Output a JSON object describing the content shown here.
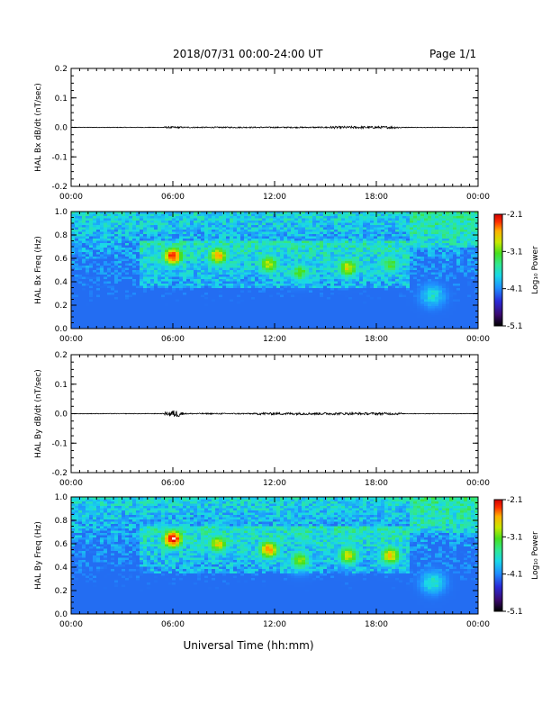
{
  "header": {
    "title": "2018/07/31  00:00-24:00 UT",
    "page": "Page 1/1"
  },
  "footer": {
    "xlabel": "Universal Time (hh:mm)"
  },
  "colors": {
    "waveform": "#000000",
    "colormap": [
      "#000000",
      "#3b0a6e",
      "#2a2ad8",
      "#1f8fff",
      "#19d8e8",
      "#30e890",
      "#46e01e",
      "#c8e800",
      "#ffb000",
      "#ff3000",
      "#d20000",
      "#ffffff"
    ]
  },
  "chart_data": [
    {
      "type": "line",
      "panel": "bx-waveform",
      "ylabel": "HAL Bx dB/dt (nT/sec)",
      "xlim": [
        "00:00",
        "24:00"
      ],
      "ylim": [
        -0.2,
        0.2
      ],
      "x_ticks": [
        "00:00",
        "06:00",
        "12:00",
        "18:00",
        "00:00"
      ],
      "y_ticks": [
        "0.2",
        "0.1",
        "0.0",
        "-0.1",
        "-0.2"
      ],
      "grid": false,
      "activity": [
        {
          "start": "00:00",
          "end": "05:00",
          "amplitude": 0.001
        },
        {
          "start": "05:30",
          "end": "06:30",
          "amplitude": 0.003
        },
        {
          "start": "06:30",
          "end": "15:00",
          "amplitude": 0.002
        },
        {
          "start": "15:00",
          "end": "19:30",
          "amplitude": 0.004
        },
        {
          "start": "19:30",
          "end": "24:00",
          "amplitude": 0.001
        }
      ]
    },
    {
      "type": "heatmap",
      "panel": "bx-spectrogram",
      "ylabel": "HAL Bx Freq (Hz)",
      "xlim": [
        "00:00",
        "24:00"
      ],
      "ylim": [
        0.0,
        1.0
      ],
      "x_ticks": [
        "00:00",
        "06:00",
        "12:00",
        "18:00",
        "00:00"
      ],
      "y_ticks": [
        "1.0",
        "0.8",
        "0.6",
        "0.4",
        "0.2",
        "0.0"
      ],
      "colorbar": {
        "label": "Log₁₀ Power",
        "range": [
          -5.1,
          -2.1
        ],
        "ticks": [
          "-2.1",
          "-3.1",
          "-4.1",
          "-5.1"
        ]
      },
      "features": [
        {
          "time": "06:00",
          "freq": 0.62,
          "log_power": -2.3
        },
        {
          "time": "08:40",
          "freq": 0.62,
          "log_power": -2.7
        },
        {
          "time": "11:40",
          "freq": 0.55,
          "log_power": -3.0
        },
        {
          "time": "13:30",
          "freq": 0.48,
          "log_power": -3.3
        },
        {
          "time": "16:20",
          "freq": 0.52,
          "log_power": -2.9
        },
        {
          "time": "18:50",
          "freq": 0.55,
          "log_power": -3.3
        },
        {
          "time": "21:20",
          "freq": 0.28,
          "log_power": -3.8
        }
      ]
    },
    {
      "type": "line",
      "panel": "by-waveform",
      "ylabel": "HAL By dB/dt (nT/sec)",
      "xlim": [
        "00:00",
        "24:00"
      ],
      "ylim": [
        -0.2,
        0.2
      ],
      "x_ticks": [
        "00:00",
        "06:00",
        "12:00",
        "18:00",
        "00:00"
      ],
      "y_ticks": [
        "0.2",
        "0.1",
        "0.0",
        "-0.1",
        "-0.2"
      ],
      "grid": false,
      "activity": [
        {
          "start": "00:00",
          "end": "05:30",
          "amplitude": 0.001
        },
        {
          "start": "05:30",
          "end": "06:40",
          "amplitude": 0.006
        },
        {
          "start": "06:40",
          "end": "11:00",
          "amplitude": 0.002
        },
        {
          "start": "11:00",
          "end": "19:30",
          "amplitude": 0.004
        },
        {
          "start": "19:30",
          "end": "24:00",
          "amplitude": 0.001
        }
      ]
    },
    {
      "type": "heatmap",
      "panel": "by-spectrogram",
      "ylabel": "HAL By Freq (Hz)",
      "xlim": [
        "00:00",
        "24:00"
      ],
      "ylim": [
        0.0,
        1.0
      ],
      "x_ticks": [
        "00:00",
        "06:00",
        "12:00",
        "18:00",
        "00:00"
      ],
      "y_ticks": [
        "1.0",
        "0.8",
        "0.6",
        "0.4",
        "0.2",
        "0.0"
      ],
      "colorbar": {
        "label": "Log₁₀ Power",
        "range": [
          -5.1,
          -2.1
        ],
        "ticks": [
          "-2.1",
          "-3.1",
          "-4.1",
          "-5.1"
        ]
      },
      "features": [
        {
          "time": "06:00",
          "freq": 0.64,
          "log_power": -2.1
        },
        {
          "time": "08:40",
          "freq": 0.6,
          "log_power": -2.9
        },
        {
          "time": "11:40",
          "freq": 0.55,
          "log_power": -2.6
        },
        {
          "time": "13:30",
          "freq": 0.46,
          "log_power": -3.1
        },
        {
          "time": "16:20",
          "freq": 0.5,
          "log_power": -2.9
        },
        {
          "time": "18:50",
          "freq": 0.5,
          "log_power": -2.8
        },
        {
          "time": "21:20",
          "freq": 0.27,
          "log_power": -3.7
        }
      ]
    }
  ]
}
